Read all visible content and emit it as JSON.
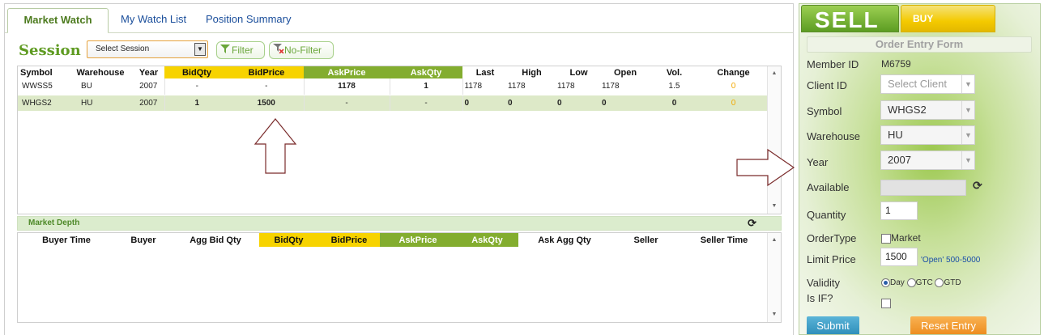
{
  "tabs": [
    {
      "label": "Market Watch"
    },
    {
      "label": "My Watch List"
    },
    {
      "label": "Position Summary"
    }
  ],
  "session": {
    "label": "Session",
    "select_value": "Select Session",
    "filter_label": "Filter",
    "nofilter_label": "No-Filter"
  },
  "watch": {
    "headers": [
      "Symbol",
      "Warehouse",
      "Year",
      "BidQty",
      "BidPrice",
      "AskPrice",
      "AskQty",
      "Last",
      "High",
      "Low",
      "Open",
      "Vol.",
      "Change"
    ],
    "rows": [
      [
        "WWSS5",
        "BU",
        "2007",
        "-",
        "-",
        "1178",
        "1",
        "1178",
        "1178",
        "1178",
        "1178",
        "1.5",
        "0"
      ],
      [
        "WHGS2",
        "HU",
        "2007",
        "1",
        "1500",
        "-",
        "-",
        "0",
        "0",
        "0",
        "0",
        "0",
        "0"
      ]
    ]
  },
  "depth": {
    "title": "Market Depth",
    "headers": [
      "Buyer Time",
      "Buyer",
      "Agg Bid Qty",
      "BidQty",
      "BidPrice",
      "AskPrice",
      "AskQty",
      "Ask Agg Qty",
      "Seller",
      "Seller Time"
    ]
  },
  "order": {
    "sell_label": "SELL",
    "buy_label": "BUY",
    "title": "Order Entry Form",
    "member_id_label": "Member ID",
    "member_id": "M6759",
    "client_id_label": "Client ID",
    "client_placeholder": "Select Client",
    "symbol_label": "Symbol",
    "symbol": "WHGS2",
    "warehouse_label": "Warehouse",
    "warehouse": "HU",
    "year_label": "Year",
    "year": "2007",
    "available_label": "Available",
    "quantity_label": "Quantity",
    "quantity": "1",
    "ordertype_label": "OrderType",
    "market_label": "Market",
    "limit_price_label": "Limit Price",
    "limit_price": "1500",
    "limit_hint": "'Open' 500-5000",
    "validity_label": "Validity",
    "validity_options": [
      "Day",
      "GTC",
      "GTD"
    ],
    "isif_label": "Is IF?",
    "submit_label": "Submit",
    "reset_label": "Reset Entry"
  },
  "colors": {
    "accent_green": "#83ad2f",
    "accent_yellow": "#f7d300",
    "change_orange": "#f2a900"
  }
}
